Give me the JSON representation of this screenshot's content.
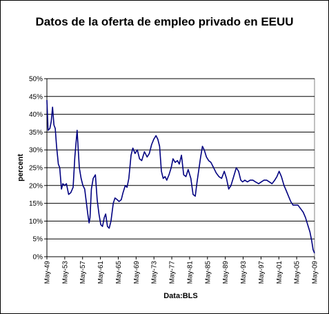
{
  "chart_data": {
    "type": "line",
    "title": "Datos de la oferta de empleo privado en EEUU",
    "xlabel": "Data:BLS",
    "ylabel": "percent",
    "ylim": [
      0,
      50
    ],
    "yticks": [
      0,
      5,
      10,
      15,
      20,
      25,
      30,
      35,
      40,
      45,
      50
    ],
    "ytick_labels": [
      "0%",
      "5%",
      "10%",
      "15%",
      "20%",
      "25%",
      "30%",
      "35%",
      "40%",
      "45%",
      "50%"
    ],
    "xlim": [
      1949.33,
      2009.33
    ],
    "xtick_labels": [
      "May-49",
      "May-53",
      "May-57",
      "May-61",
      "May-65",
      "May-69",
      "May-73",
      "May-77",
      "May-81",
      "May-85",
      "May-89",
      "May-93",
      "May-97",
      "May-01",
      "May-05",
      "May-09"
    ],
    "grid": "horizontal",
    "line_color": "#000080",
    "series": [
      {
        "name": "",
        "x": [
          1949.33,
          1949.6,
          1950.0,
          1950.3,
          1950.6,
          1950.9,
          1951.2,
          1951.5,
          1951.9,
          1952.2,
          1952.6,
          1952.9,
          1953.3,
          1953.7,
          1954.2,
          1954.7,
          1955.2,
          1955.6,
          1956.1,
          1956.6,
          1957.0,
          1957.4,
          1957.8,
          1958.1,
          1958.5,
          1958.8,
          1959.0,
          1959.3,
          1959.7,
          1960.2,
          1960.6,
          1961.0,
          1961.4,
          1961.8,
          1962.2,
          1962.5,
          1962.9,
          1963.3,
          1963.7,
          1964.2,
          1964.6,
          1965.1,
          1965.5,
          1966.0,
          1966.4,
          1966.9,
          1967.3,
          1967.7,
          1968.2,
          1968.6,
          1969.1,
          1969.6,
          1970.1,
          1970.6,
          1971.2,
          1971.8,
          1972.3,
          1972.8,
          1973.3,
          1973.8,
          1974.2,
          1974.6,
          1975.0,
          1975.4,
          1975.8,
          1976.2,
          1976.7,
          1977.2,
          1977.6,
          1978.1,
          1978.6,
          1979.0,
          1979.5,
          1980.0,
          1980.5,
          1981.0,
          1981.6,
          1982.1,
          1982.6,
          1983.0,
          1983.4,
          1983.8,
          1984.2,
          1984.6,
          1985.1,
          1985.6,
          1986.1,
          1986.7,
          1987.3,
          1987.9,
          1988.5,
          1989.1,
          1989.6,
          1990.1,
          1990.6,
          1991.2,
          1991.8,
          1992.3,
          1992.8,
          1993.2,
          1993.7,
          1994.3,
          1994.9,
          1995.5,
          1996.1,
          1996.8,
          1997.4,
          1998.0,
          1998.6,
          1999.2,
          1999.8,
          2000.4,
          2000.9,
          2001.4,
          2001.9,
          2002.5,
          2003.0,
          2003.5,
          2004.0,
          2004.5,
          2005.0,
          2005.6,
          2006.2,
          2006.8,
          2007.3,
          2007.8,
          2008.3,
          2008.7,
          2009.0,
          2009.33
        ],
        "values": [
          44.0,
          35.5,
          36.0,
          38.0,
          42.0,
          37.0,
          36.0,
          31.0,
          26.0,
          25.0,
          19.0,
          20.5,
          20.0,
          20.5,
          17.5,
          18.0,
          19.5,
          28.0,
          35.5,
          25.0,
          22.0,
          20.0,
          19.0,
          16.0,
          12.0,
          9.5,
          11.0,
          19.0,
          22.0,
          23.0,
          16.0,
          12.0,
          9.0,
          8.5,
          11.0,
          12.0,
          8.5,
          8.0,
          10.0,
          15.0,
          16.5,
          16.0,
          15.5,
          16.0,
          18.0,
          20.0,
          19.5,
          22.0,
          28.5,
          30.5,
          29.0,
          30.0,
          27.5,
          27.0,
          29.5,
          28.0,
          29.0,
          31.5,
          33.0,
          34.0,
          33.0,
          31.0,
          24.0,
          22.0,
          22.5,
          21.5,
          23.0,
          25.0,
          27.5,
          26.5,
          27.0,
          26.0,
          28.5,
          23.0,
          22.5,
          24.5,
          22.0,
          17.5,
          17.0,
          21.0,
          24.5,
          28.0,
          31.0,
          30.0,
          28.0,
          27.0,
          26.5,
          25.0,
          23.5,
          22.5,
          22.0,
          24.0,
          22.0,
          19.0,
          20.0,
          22.5,
          25.0,
          24.0,
          21.5,
          21.0,
          21.5,
          21.0,
          21.5,
          21.5,
          21.0,
          20.5,
          21.0,
          21.5,
          21.5,
          21.0,
          20.5,
          21.5,
          22.5,
          24.0,
          22.5,
          20.0,
          18.5,
          17.0,
          15.5,
          14.5,
          14.5,
          14.5,
          13.5,
          12.5,
          11.0,
          9.0,
          7.0,
          4.5,
          2.0,
          1.0
        ]
      }
    ]
  }
}
